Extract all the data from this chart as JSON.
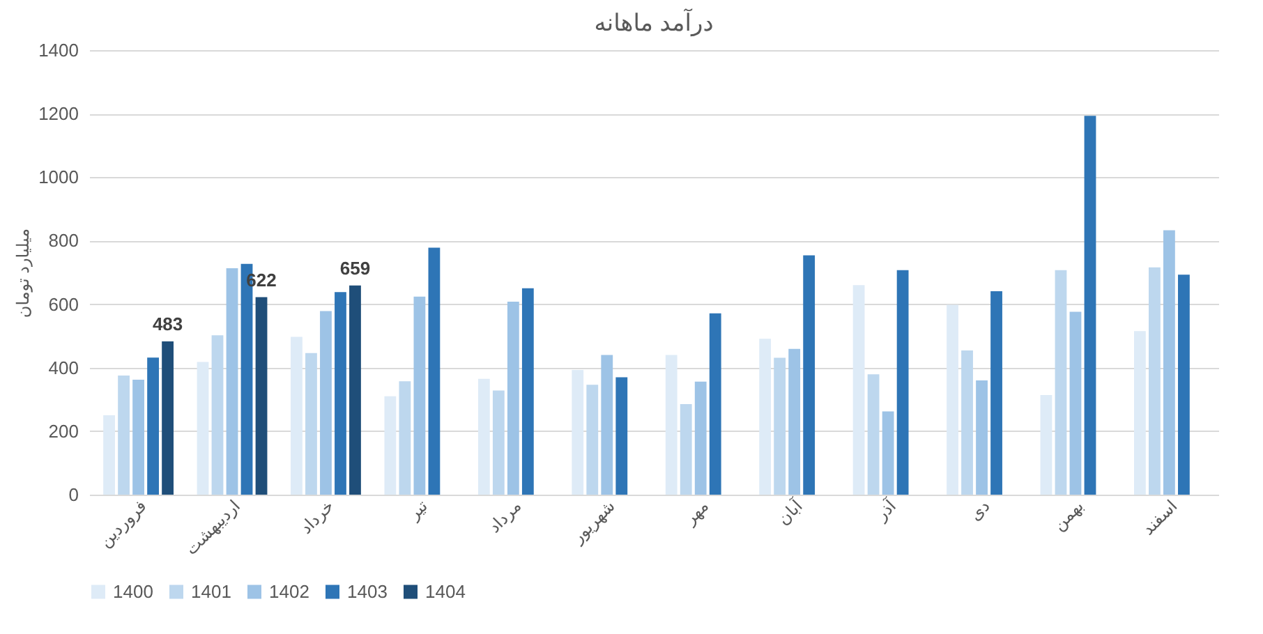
{
  "chart_data": {
    "type": "bar",
    "title": "درآمد ماهانه",
    "ylabel": "میلیارد تومان",
    "categories": [
      "فروردین",
      "اردیبهشت",
      "خرداد",
      "تیر",
      "مرداد",
      "شهریور",
      "مهر",
      "آبان",
      "آذر",
      "دی",
      "بهمن",
      "اسفند"
    ],
    "series": [
      {
        "name": "1400",
        "color": "#deebf7",
        "values": [
          250,
          418,
          497,
          310,
          365,
          393,
          440,
          491,
          660,
          598,
          314,
          515
        ]
      },
      {
        "name": "1401",
        "color": "#bdd7ee",
        "values": [
          375,
          502,
          446,
          357,
          328,
          346,
          285,
          431,
          379,
          454,
          707,
          716
        ]
      },
      {
        "name": "1402",
        "color": "#9dc3e6",
        "values": [
          362,
          713,
          578,
          624,
          608,
          440,
          356,
          459,
          262,
          360,
          576,
          833
        ]
      },
      {
        "name": "1403",
        "color": "#2e75b6",
        "values": [
          432,
          727,
          638,
          778,
          650,
          370,
          571,
          754,
          707,
          641,
          1193,
          693
        ]
      },
      {
        "name": "1404",
        "color": "#1f4e79",
        "values": [
          483,
          622,
          659,
          null,
          null,
          null,
          null,
          null,
          null,
          null,
          null,
          null
        ],
        "value_labels": [
          "483",
          "622",
          "659",
          null,
          null,
          null,
          null,
          null,
          null,
          null,
          null,
          null
        ]
      }
    ],
    "ylim": [
      0,
      1400
    ],
    "yticks": [
      0,
      200,
      400,
      600,
      800,
      1000,
      1200,
      1400
    ],
    "grid": "y",
    "legend": "bottom"
  }
}
